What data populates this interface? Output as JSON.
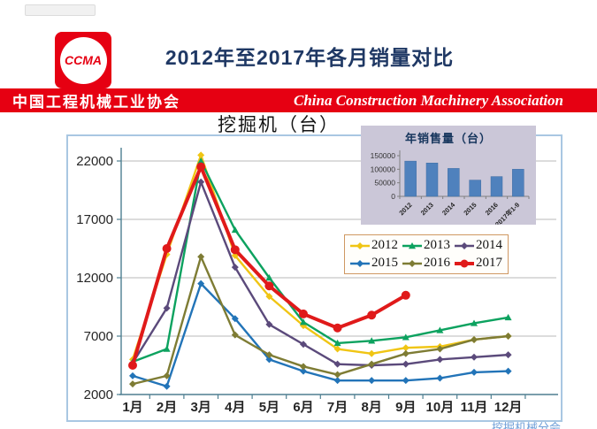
{
  "page": {
    "title": "2012年至2017年各月销量对比",
    "logo_text": "CCMA",
    "footer_fragment": "挖掘机械分会"
  },
  "banner": {
    "cn": "中国工程机械工业协会",
    "en": "China Construction Machinery Association"
  },
  "colors": {
    "banner_red": "#e60012",
    "title_navy": "#1f3864",
    "frame_border": "#a9c7e2",
    "axis": "#4e7f91",
    "grid": "#b9b9b9",
    "legend_border": "#cf9862",
    "inset_bg": "#cbc7d8",
    "inset_bar": "#4f81bd",
    "inset_title_navy": "#17365d"
  },
  "chart_data": [
    {
      "type": "line",
      "title": "挖掘机（台）",
      "categories": [
        "1月",
        "2月",
        "3月",
        "4月",
        "5月",
        "6月",
        "7月",
        "8月",
        "9月",
        "10月",
        "11月",
        "12月"
      ],
      "series": [
        {
          "name": "2012",
          "color": "#f0c514",
          "marker": "diamond",
          "width": 2.4,
          "values": [
            5000,
            14000,
            22500,
            13900,
            10400,
            7900,
            5900,
            5500,
            6000,
            6100,
            6700,
            7000
          ]
        },
        {
          "name": "2013",
          "color": "#0ca25f",
          "marker": "triangle",
          "width": 2.4,
          "values": [
            4800,
            5900,
            22000,
            16100,
            12000,
            8200,
            6400,
            6600,
            6900,
            7500,
            8100,
            8600
          ]
        },
        {
          "name": "2014",
          "color": "#5b4a7b",
          "marker": "diamond",
          "width": 2.4,
          "values": [
            4700,
            9400,
            20200,
            12900,
            8000,
            6300,
            4600,
            4500,
            4600,
            5000,
            5200,
            5400
          ]
        },
        {
          "name": "2015",
          "color": "#2274b8",
          "marker": "diamond",
          "width": 2.4,
          "values": [
            3600,
            2700,
            11500,
            8500,
            5000,
            4000,
            3200,
            3200,
            3200,
            3400,
            3900,
            4000
          ]
        },
        {
          "name": "2016",
          "color": "#7e7c34",
          "marker": "diamond",
          "width": 2.4,
          "values": [
            2900,
            3600,
            13800,
            7100,
            5400,
            4400,
            3700,
            4600,
            5500,
            5900,
            6700,
            7000
          ]
        },
        {
          "name": "2017",
          "color": "#e01a1a",
          "marker": "circle",
          "width": 4,
          "values": [
            4500,
            14500,
            21500,
            14400,
            11300,
            8900,
            7700,
            8800,
            10500
          ]
        }
      ],
      "yticks": [
        2000,
        7000,
        12000,
        17000,
        22000
      ],
      "ylim": [
        2000,
        23000
      ],
      "grid": true,
      "legend_position": "inside-right"
    },
    {
      "type": "bar",
      "title": "年销售量（台）",
      "categories": [
        "2012",
        "2013",
        "2014",
        "2015",
        "2016",
        "2017年1-9"
      ],
      "values": [
        130000,
        123000,
        103000,
        60000,
        73000,
        100000
      ],
      "yticks": [
        0,
        50000,
        100000,
        150000
      ],
      "ylim": [
        0,
        150000
      ],
      "bar_color": "#4f81bd"
    }
  ]
}
